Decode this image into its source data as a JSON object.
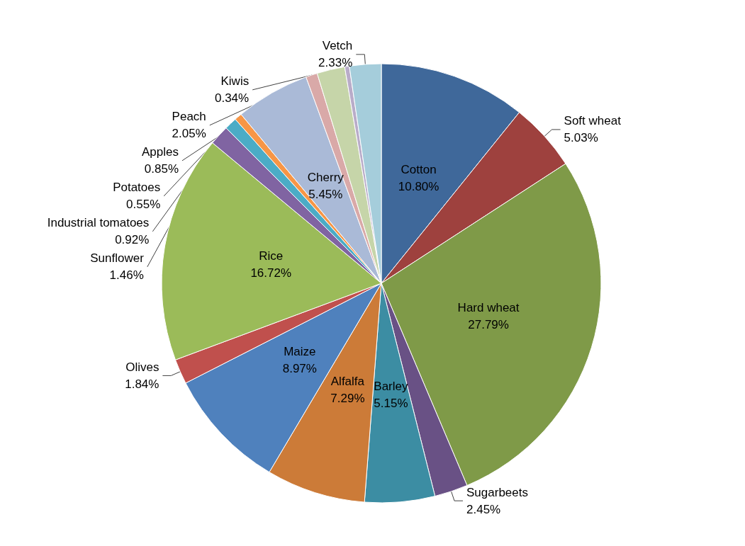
{
  "chart_data": {
    "type": "pie",
    "categories": [
      "Cotton",
      "Soft wheat",
      "Hard wheat",
      "Sugarbeets",
      "Barley",
      "Alfalfa",
      "Maize",
      "Olives",
      "Rice",
      "Sunflower",
      "Industrial tomatoes",
      "Potatoes",
      "Cherry",
      "Apples",
      "Peach",
      "Kiwis",
      "Vetch"
    ],
    "values": [
      10.8,
      5.03,
      27.79,
      2.45,
      5.15,
      7.29,
      8.97,
      1.84,
      16.72,
      1.46,
      0.92,
      0.55,
      5.45,
      0.85,
      2.05,
      0.34,
      2.33
    ],
    "value_labels": [
      "10.80%",
      "5.03%",
      "27.79%",
      "2.45%",
      "5.15%",
      "7.29%",
      "8.97%",
      "1.84%",
      "16.72%",
      "1.46%",
      "0.92%",
      "0.55%",
      "5.45%",
      "0.85%",
      "2.05%",
      "0.34%",
      "2.33%"
    ],
    "colors": [
      "#3f689a",
      "#9e413e",
      "#7f9a48",
      "#695185",
      "#3c8da3",
      "#cc7b38",
      "#4f81bd",
      "#c0504d",
      "#9bbb59",
      "#8064a2",
      "#4bacc6",
      "#f79646",
      "#aabad7",
      "#d9a9a8",
      "#c6d5a9",
      "#b9acc9",
      "#a5cddb"
    ],
    "legend": false
  }
}
